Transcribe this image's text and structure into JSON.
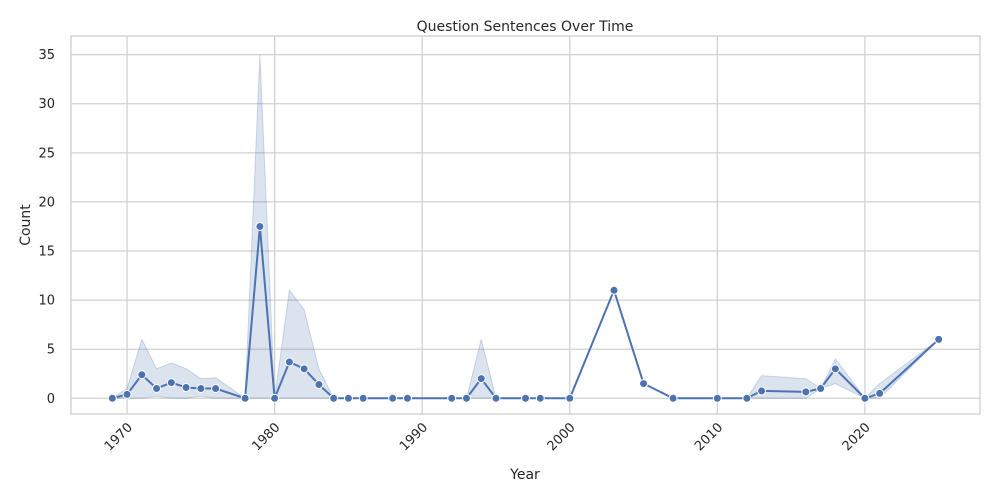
{
  "chart_data": {
    "type": "line",
    "title": "Question Sentences Over Time",
    "xlabel": "Year",
    "ylabel": "Count",
    "xlim": [
      1966.2,
      2027.8
    ],
    "ylim": [
      -1.6,
      36.9
    ],
    "x_ticks": [
      1970,
      1980,
      1990,
      2000,
      2010,
      2020
    ],
    "y_ticks": [
      0,
      5,
      10,
      15,
      20,
      25,
      30,
      35
    ],
    "grid": true,
    "legend": "none",
    "colors": {
      "line": "#4c72b0",
      "band": "#4c72b0",
      "grid": "#d0d0d0",
      "frame": "#cccccc"
    },
    "series": [
      {
        "x": [
          1969,
          1970,
          1971,
          1972,
          1973,
          1974,
          1975,
          1976,
          1978,
          1979,
          1980,
          1981,
          1982,
          1983,
          1984,
          1985,
          1986,
          1988,
          1989,
          1992,
          1993,
          1994,
          1995,
          1997,
          1998,
          2000,
          2003,
          2005,
          2007,
          2010,
          2012,
          2013,
          2016,
          2017,
          2018,
          2020,
          2021,
          2025
        ],
        "y": [
          0,
          0.4,
          2.4,
          1.0,
          1.6,
          1.1,
          1.0,
          1.0,
          0,
          17.5,
          0,
          3.7,
          3.0,
          1.4,
          0,
          0,
          0,
          0,
          0,
          0,
          0,
          2.0,
          0,
          0,
          0,
          0,
          11,
          1.5,
          0,
          0,
          0,
          0.75,
          0.65,
          1.0,
          3.0,
          0,
          0.5,
          6.0
        ],
        "ci_low": [
          0,
          0,
          0,
          0.2,
          0,
          0,
          0.2,
          0,
          0,
          0,
          0,
          0,
          0,
          0,
          0,
          0,
          0,
          0,
          0,
          0,
          0,
          0,
          0,
          0,
          0,
          0,
          11,
          1.5,
          0,
          0,
          0,
          0,
          0,
          1.0,
          1.5,
          0,
          0,
          6.0
        ],
        "ci_high": [
          0,
          1.0,
          6.0,
          3.0,
          3.6,
          3.0,
          2.0,
          2.1,
          0,
          35.0,
          0,
          11.0,
          9.0,
          3.0,
          0,
          0,
          0,
          0,
          0,
          0,
          0,
          6.0,
          0,
          0,
          0,
          0,
          11,
          1.5,
          0,
          0,
          0,
          2.3,
          2.0,
          1.0,
          4.0,
          0,
          1.5,
          6.0
        ]
      }
    ]
  }
}
